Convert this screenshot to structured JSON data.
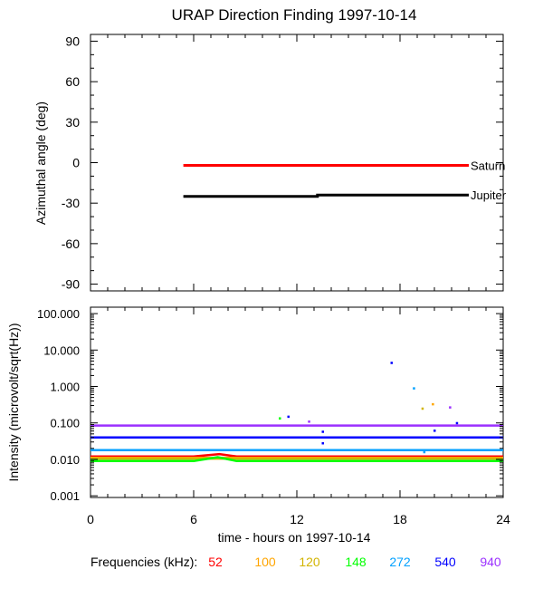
{
  "chart_data": [
    {
      "type": "line",
      "title": "URAP Direction Finding  1997-10-14",
      "ylabel": "Azimuthal angle (deg)",
      "xlim": [
        0,
        24
      ],
      "ylim": [
        -95,
        95
      ],
      "yticks": [
        90,
        60,
        30,
        0,
        -30,
        -60,
        -90
      ],
      "series": [
        {
          "name": "Saturn",
          "color": "#ff0000",
          "x": [
            5.4,
            22.0
          ],
          "y": [
            -2,
            -2
          ]
        },
        {
          "name": "Jupiter",
          "color": "#000000",
          "x": [
            5.4,
            13.2,
            13.2,
            22.0
          ],
          "y": [
            -25,
            -25,
            -24,
            -24
          ]
        }
      ]
    },
    {
      "type": "scatter",
      "ylabel": "Intensity (microvolt/sqrt(Hz))",
      "xlabel": "time - hours on 1997-10-14",
      "xlim": [
        0,
        24
      ],
      "xticks": [
        0,
        6,
        12,
        18,
        24
      ],
      "yscale": "log",
      "ylim": [
        0.0009,
        150
      ],
      "yticks": [
        100,
        10,
        1,
        0.1,
        0.01,
        0.001
      ],
      "ytick_labels": [
        "100.000",
        "10.000",
        "1.000",
        "0.100",
        "0.010",
        "0.001"
      ],
      "legend_label": "Frequencies (kHz):",
      "series": [
        {
          "name": "52",
          "color": "#ff0000",
          "x": [
            0,
            6,
            7.5,
            8.5,
            12,
            18,
            20.8,
            21.5,
            24
          ],
          "y": [
            0.012,
            0.012,
            0.014,
            0.012,
            0.012,
            0.012,
            0.012,
            0.012,
            0.012
          ]
        },
        {
          "name": "100",
          "color": "#ffa500",
          "x": [
            0,
            6,
            12,
            18,
            24
          ],
          "y": [
            0.011,
            0.011,
            0.011,
            0.011,
            0.011
          ]
        },
        {
          "name": "120",
          "color": "#d2b400",
          "x": [
            0,
            6,
            12,
            18,
            24
          ],
          "y": [
            0.0105,
            0.0105,
            0.0105,
            0.0105,
            0.0105
          ]
        },
        {
          "name": "148",
          "color": "#00ff00",
          "x": [
            0,
            6,
            7.4,
            8.5,
            12,
            18,
            24
          ],
          "y": [
            0.009,
            0.009,
            0.0115,
            0.009,
            0.009,
            0.009,
            0.009
          ]
        },
        {
          "name": "272",
          "color": "#00a0ff",
          "x": [
            0,
            6,
            12,
            18,
            24
          ],
          "y": [
            0.018,
            0.018,
            0.018,
            0.018,
            0.018
          ]
        },
        {
          "name": "540",
          "color": "#0000ff",
          "x": [
            0,
            6,
            12,
            18,
            24
          ],
          "y": [
            0.04,
            0.04,
            0.04,
            0.04,
            0.04
          ]
        },
        {
          "name": "940",
          "color": "#9b30ff",
          "x": [
            0,
            6,
            12,
            18,
            24
          ],
          "y": [
            0.085,
            0.085,
            0.085,
            0.085,
            0.085
          ]
        }
      ],
      "points": [
        {
          "x": 17.5,
          "y": 4.5,
          "color": "#0000ff"
        },
        {
          "x": 18.8,
          "y": 0.9,
          "color": "#00a0ff"
        },
        {
          "x": 19.3,
          "y": 0.25,
          "color": "#d2b400"
        },
        {
          "x": 19.9,
          "y": 0.33,
          "color": "#ffa500"
        },
        {
          "x": 20.9,
          "y": 0.27,
          "color": "#9b30ff"
        },
        {
          "x": 11.5,
          "y": 0.15,
          "color": "#0000ff"
        },
        {
          "x": 12.7,
          "y": 0.11,
          "color": "#9b30ff"
        },
        {
          "x": 13.5,
          "y": 0.058,
          "color": "#0000ff"
        },
        {
          "x": 13.5,
          "y": 0.028,
          "color": "#0000ff"
        },
        {
          "x": 20.0,
          "y": 0.062,
          "color": "#0000ff"
        },
        {
          "x": 21.3,
          "y": 0.1,
          "color": "#0000ff"
        },
        {
          "x": 19.4,
          "y": 0.016,
          "color": "#00a0ff"
        },
        {
          "x": 11.0,
          "y": 0.135,
          "color": "#00ff00"
        }
      ]
    }
  ]
}
